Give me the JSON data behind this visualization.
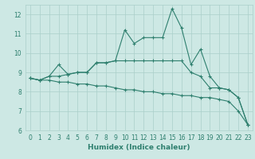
{
  "xlabel": "Humidex (Indice chaleur)",
  "x": [
    0,
    1,
    2,
    3,
    4,
    5,
    6,
    7,
    8,
    9,
    10,
    11,
    12,
    13,
    14,
    15,
    16,
    17,
    18,
    19,
    20,
    21,
    22,
    23
  ],
  "line1": [
    8.7,
    8.6,
    8.8,
    9.4,
    8.9,
    9.0,
    9.0,
    9.5,
    9.5,
    9.6,
    11.2,
    10.5,
    10.8,
    10.8,
    10.8,
    12.3,
    11.3,
    9.4,
    10.2,
    8.8,
    8.2,
    8.1,
    7.7,
    6.3
  ],
  "line2": [
    8.7,
    8.6,
    8.8,
    8.8,
    8.9,
    9.0,
    9.0,
    9.5,
    9.5,
    9.6,
    9.6,
    9.6,
    9.6,
    9.6,
    9.6,
    9.6,
    9.6,
    9.0,
    8.8,
    8.2,
    8.2,
    8.1,
    7.7,
    6.3
  ],
  "line3": [
    8.7,
    8.6,
    8.6,
    8.5,
    8.5,
    8.4,
    8.4,
    8.3,
    8.3,
    8.2,
    8.1,
    8.1,
    8.0,
    8.0,
    7.9,
    7.9,
    7.8,
    7.8,
    7.7,
    7.7,
    7.6,
    7.5,
    7.0,
    6.3
  ],
  "line_color": "#2e7f6e",
  "bg_color": "#cde8e4",
  "grid_color": "#aacfca",
  "ylim": [
    6,
    12.5
  ],
  "yticks": [
    6,
    7,
    8,
    9,
    10,
    11,
    12
  ],
  "xticks": [
    0,
    1,
    2,
    3,
    4,
    5,
    6,
    7,
    8,
    9,
    10,
    11,
    12,
    13,
    14,
    15,
    16,
    17,
    18,
    19,
    20,
    21,
    22,
    23
  ],
  "marker": "+",
  "markersize": 3,
  "linewidth": 0.8,
  "tick_fontsize": 5.5,
  "xlabel_fontsize": 6.5
}
